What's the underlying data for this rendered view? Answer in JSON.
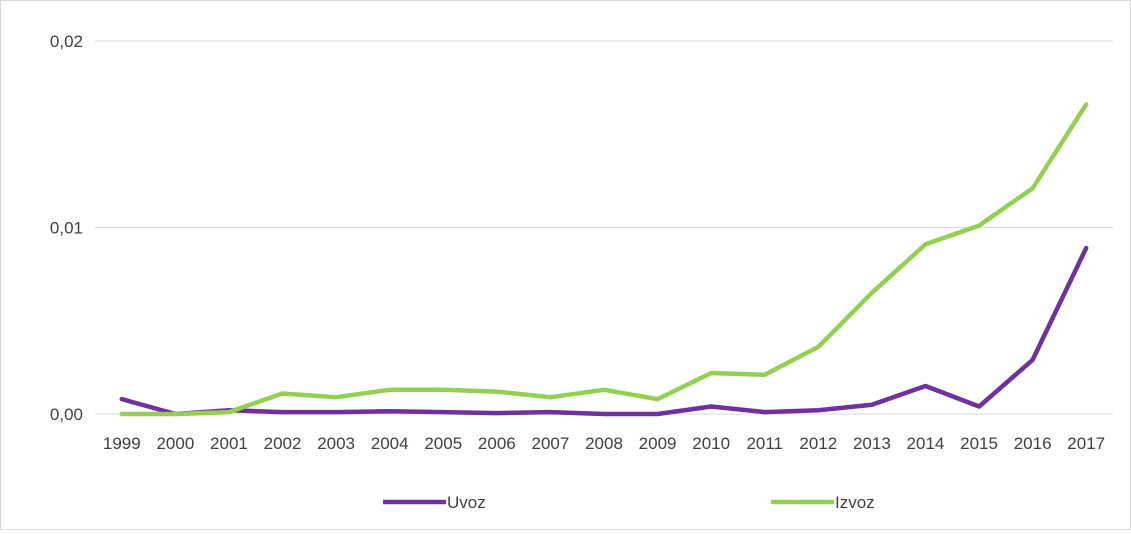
{
  "chart_data": {
    "type": "line",
    "categories": [
      "1999",
      "2000",
      "2001",
      "2002",
      "2003",
      "2004",
      "2005",
      "2006",
      "2007",
      "2008",
      "2009",
      "2010",
      "2011",
      "2012",
      "2013",
      "2014",
      "2015",
      "2016",
      "2017"
    ],
    "series": [
      {
        "name": "Uvoz",
        "color": "#7030a0",
        "values": [
          0.0008,
          0.0,
          0.0002,
          0.0001,
          0.0001,
          0.00015,
          0.0001,
          5e-05,
          0.0001,
          0.0,
          0.0,
          0.0004,
          0.0001,
          0.0002,
          0.0005,
          0.0015,
          0.0004,
          0.0029,
          0.0089
        ]
      },
      {
        "name": "Izvoz",
        "color": "#92d050",
        "values": [
          0.0,
          0.0,
          0.0001,
          0.0011,
          0.0009,
          0.0013,
          0.0013,
          0.0012,
          0.0009,
          0.0013,
          0.0008,
          0.0022,
          0.0021,
          0.0036,
          0.0065,
          0.0091,
          0.0101,
          0.0121,
          0.0166
        ]
      }
    ],
    "y_ticks": [
      "0,00",
      "0,01",
      "0,02"
    ],
    "ylim": [
      0,
      0.02
    ],
    "grid": true,
    "legend": "bottom"
  }
}
